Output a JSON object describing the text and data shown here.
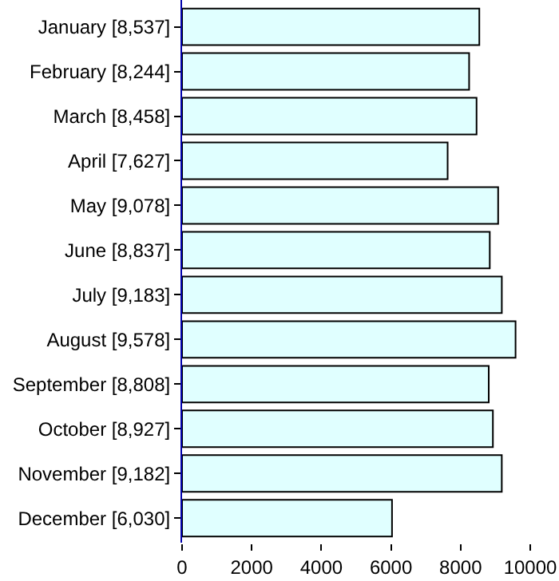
{
  "chart_data": {
    "type": "bar",
    "orientation": "horizontal",
    "categories": [
      "January [8,537]",
      "February [8,244]",
      "March [8,458]",
      "April [7,627]",
      "May [9,078]",
      "June [8,837]",
      "July [9,183]",
      "August [9,578]",
      "September [8,808]",
      "October [8,927]",
      "November [9,182]",
      "December [6,030]"
    ],
    "values": [
      8537,
      8244,
      8458,
      7627,
      9078,
      8837,
      9183,
      9578,
      8808,
      8927,
      9182,
      6030
    ],
    "color": "#e0ffff",
    "xlim": [
      0,
      10000
    ],
    "xticks": [
      0,
      2000,
      4000,
      6000,
      8000,
      10000
    ]
  }
}
